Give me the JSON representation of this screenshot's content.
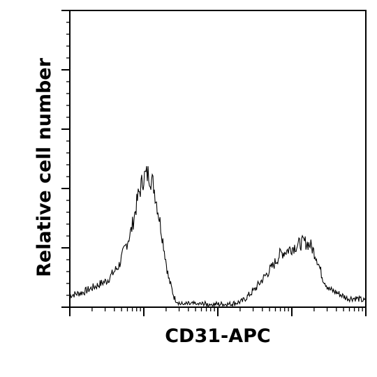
{
  "chart_data": {
    "type": "line",
    "title": "",
    "xlabel": "CD31-APC",
    "ylabel": "Relative cell number",
    "x_scale": "log",
    "xlim": [
      1,
      10000
    ],
    "ylim": [
      0,
      100
    ],
    "grid": false,
    "legend": "none",
    "line_color": "#000000",
    "series": [
      {
        "x": [
          1.0,
          1.5,
          2.2,
          3.2,
          4.6,
          6.8,
          8.5,
          10.0,
          11.7,
          13.6,
          17.0,
          21.5,
          26.0,
          31.5,
          46.0,
          68.0,
          100.0,
          147.0,
          215.0,
          316.0,
          420.0,
          560.0,
          700.0,
          850.0,
          1000.0,
          1210.0,
          1470.0,
          1780.0,
          2150.0,
          2600.0,
          3200.0,
          4000.0,
          5600.0,
          7500.0,
          10000.0
        ],
        "y": [
          4,
          5,
          7,
          9,
          14,
          26,
          38,
          44,
          45,
          41,
          27,
          10,
          3,
          1,
          1,
          1,
          1,
          1,
          2,
          6,
          10,
          14,
          18,
          19,
          20,
          21,
          22,
          21,
          17,
          10,
          6,
          5,
          3,
          3,
          2
        ]
      }
    ]
  }
}
